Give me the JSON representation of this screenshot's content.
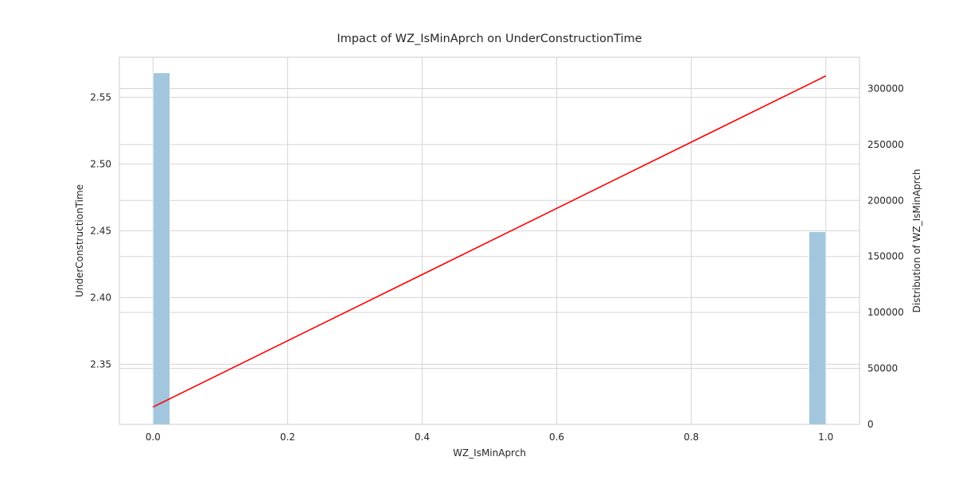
{
  "chart_data": {
    "type": "bar",
    "title": "Impact of WZ_IsMinAprch on UnderConstructionTime",
    "xlabel": "WZ_IsMinAprch",
    "ylabel": "UnderConstructionTime",
    "y2label": "Distribution of WZ_IsMinAprch",
    "xlim": [
      -0.05,
      1.05
    ],
    "ylim": [
      2.305,
      2.58
    ],
    "y2lim": [
      0,
      328000
    ],
    "xticks": [
      0.0,
      0.2,
      0.4,
      0.6,
      0.8,
      1.0
    ],
    "xtick_labels": [
      "0.0",
      "0.2",
      "0.4",
      "0.6",
      "0.8",
      "1.0"
    ],
    "yticks": [
      2.35,
      2.4,
      2.45,
      2.5,
      2.55
    ],
    "ytick_labels": [
      "2.35",
      "2.40",
      "2.45",
      "2.50",
      "2.55"
    ],
    "y2ticks": [
      0,
      50000,
      100000,
      150000,
      200000,
      250000,
      300000
    ],
    "y2tick_labels": [
      "0",
      "50000",
      "100000",
      "150000",
      "200000",
      "250000",
      "300000"
    ],
    "grid": true,
    "histogram": {
      "bar_width": 0.025,
      "bins": [
        {
          "x": 0.0,
          "count": 314000
        },
        {
          "x": 0.975,
          "count": 172000
        }
      ],
      "color": "#a2c6de"
    },
    "line": {
      "x": [
        0.0,
        1.0
      ],
      "y": [
        2.318,
        2.566
      ],
      "color": "#ff0000"
    }
  }
}
